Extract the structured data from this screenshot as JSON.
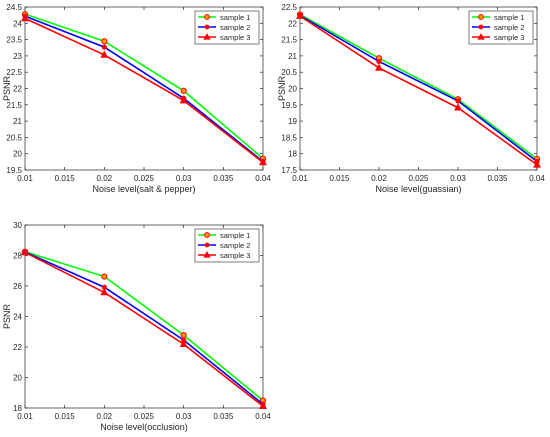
{
  "chart_data": [
    {
      "type": "line",
      "xlabel": "Noise level(salt & pepper)",
      "ylabel": "PSNR",
      "xlim": [
        0.01,
        0.04
      ],
      "ylim": [
        19.5,
        24.5
      ],
      "xticks": [
        "0.01",
        "0.015",
        "0.02",
        "0.025",
        "0.03",
        "0.035",
        "0.04"
      ],
      "yticks": [
        "19.5",
        "20",
        "20.5",
        "21",
        "21.5",
        "22",
        "22.5",
        "23",
        "23.5",
        "24",
        "24.5"
      ],
      "legend_position": "top-right",
      "x": [
        0.01,
        0.02,
        0.03,
        0.04
      ],
      "series": [
        {
          "name": "sample 1",
          "values": [
            24.28,
            23.45,
            21.93,
            19.85
          ]
        },
        {
          "name": "sample 2",
          "values": [
            24.22,
            23.27,
            21.7,
            19.76
          ]
        },
        {
          "name": "sample 3",
          "values": [
            24.15,
            23.03,
            21.63,
            19.73
          ]
        }
      ]
    },
    {
      "type": "line",
      "xlabel": "Noise level(guassian)",
      "ylabel": "PSNR",
      "xlim": [
        0.01,
        0.04
      ],
      "ylim": [
        17.5,
        22.5
      ],
      "xticks": [
        "0.01",
        "0.015",
        "0.02",
        "0.025",
        "0.03",
        "0.035",
        "0.04"
      ],
      "yticks": [
        "17.5",
        "18",
        "18.5",
        "19",
        "19.5",
        "20",
        "20.5",
        "21",
        "21.5",
        "22",
        "22.5"
      ],
      "legend_position": "top-right",
      "x": [
        0.01,
        0.02,
        0.03,
        0.04
      ],
      "series": [
        {
          "name": "sample 1",
          "values": [
            22.27,
            20.93,
            19.67,
            17.84
          ]
        },
        {
          "name": "sample 2",
          "values": [
            22.24,
            20.83,
            19.62,
            17.76
          ]
        },
        {
          "name": "sample 3",
          "values": [
            22.22,
            20.63,
            19.41,
            17.66
          ]
        }
      ]
    },
    {
      "type": "line",
      "xlabel": "Noise level(occlusion)",
      "ylabel": "PSNR",
      "xlim": [
        0.01,
        0.04
      ],
      "ylim": [
        18,
        30
      ],
      "xticks": [
        "0.01",
        "0.015",
        "0.02",
        "0.025",
        "0.03",
        "0.035",
        "0.04"
      ],
      "yticks": [
        "18",
        "20",
        "22",
        "24",
        "26",
        "28",
        "30"
      ],
      "legend_position": "top-right",
      "x": [
        0.01,
        0.02,
        0.03,
        0.04
      ],
      "series": [
        {
          "name": "sample 1",
          "values": [
            28.25,
            26.62,
            22.78,
            18.49
          ]
        },
        {
          "name": "sample 2",
          "values": [
            28.23,
            25.92,
            22.45,
            18.25
          ]
        },
        {
          "name": "sample 3",
          "values": [
            28.2,
            25.58,
            22.18,
            18.12
          ]
        }
      ]
    }
  ],
  "series_style": [
    {
      "color": "#00ff00",
      "marker": "circle",
      "marker_face": "#ff9900",
      "marker_edge": "#ff0000"
    },
    {
      "color": "#0000ff",
      "marker": "dot",
      "marker_face": "#ff0000",
      "marker_edge": "#ff0000"
    },
    {
      "color": "#ff0000",
      "marker": "triangle",
      "marker_face": "#ff0000",
      "marker_edge": "#ff0000"
    }
  ]
}
